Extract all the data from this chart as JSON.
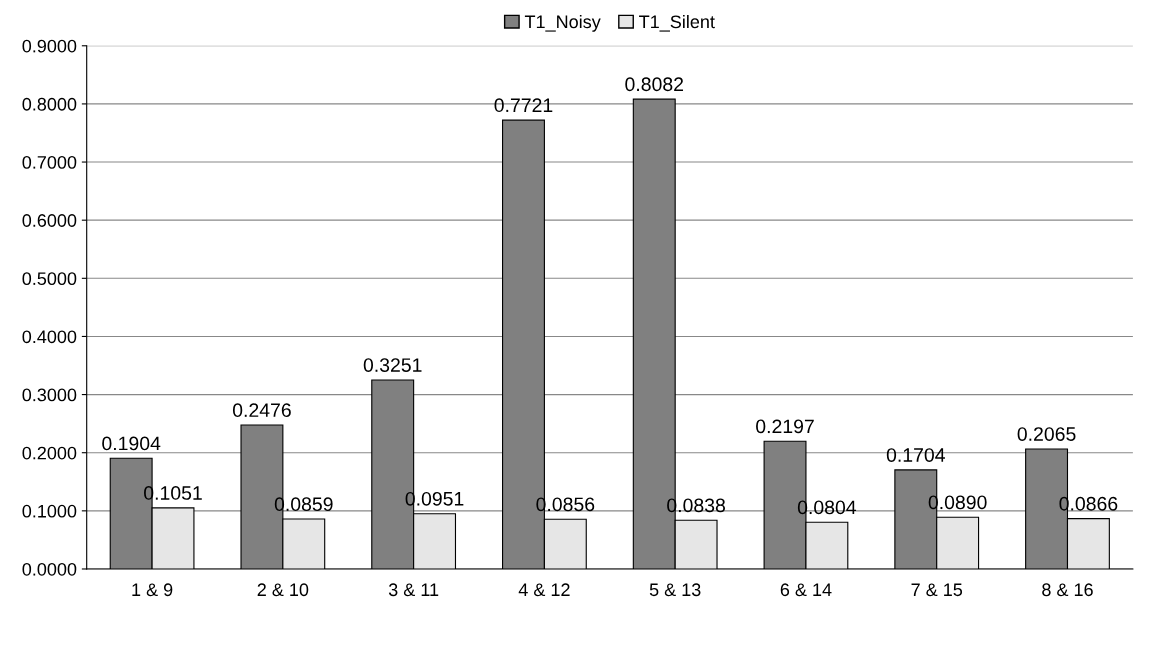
{
  "chart_data": {
    "type": "bar",
    "categories": [
      "1 & 9",
      "2 & 10",
      "3 & 11",
      "4 & 12",
      "5 & 13",
      "6 & 14",
      "7 & 15",
      "8 & 16"
    ],
    "series": [
      {
        "name": "T1_Noisy",
        "color": "#808080",
        "values": [
          0.1904,
          0.2476,
          0.3251,
          0.7721,
          0.8082,
          0.2197,
          0.1704,
          0.2065
        ],
        "value_labels": [
          "0.1904",
          "0.2476",
          "0.3251",
          "0.7721",
          "0.8082",
          "0.2197",
          "0.1704",
          "0.2065"
        ]
      },
      {
        "name": "T1_Silent",
        "color": "#e6e6e6",
        "values": [
          0.1051,
          0.0859,
          0.0951,
          0.0856,
          0.0838,
          0.0804,
          0.089,
          0.0866
        ],
        "value_labels": [
          "0.1051",
          "0.0859",
          "0.0951",
          "0.0856",
          "0.0838",
          "0.0804",
          "0.0890",
          "0.0866"
        ]
      }
    ],
    "ylim": [
      0,
      0.9
    ],
    "yticks": [
      {
        "value": 0,
        "label": "0.0000"
      },
      {
        "value": 0.1,
        "label": "0.1000"
      },
      {
        "value": 0.2,
        "label": "0.2000"
      },
      {
        "value": 0.3,
        "label": "0.3000"
      },
      {
        "value": 0.4,
        "label": "0.4000"
      },
      {
        "value": 0.5,
        "label": "0.5000"
      },
      {
        "value": 0.6,
        "label": "0.6000"
      },
      {
        "value": 0.7,
        "label": "0.7000"
      },
      {
        "value": 0.8,
        "label": "0.8000"
      },
      {
        "value": 0.9,
        "label": "0.9000"
      }
    ],
    "grid": "y",
    "legend": "top"
  }
}
